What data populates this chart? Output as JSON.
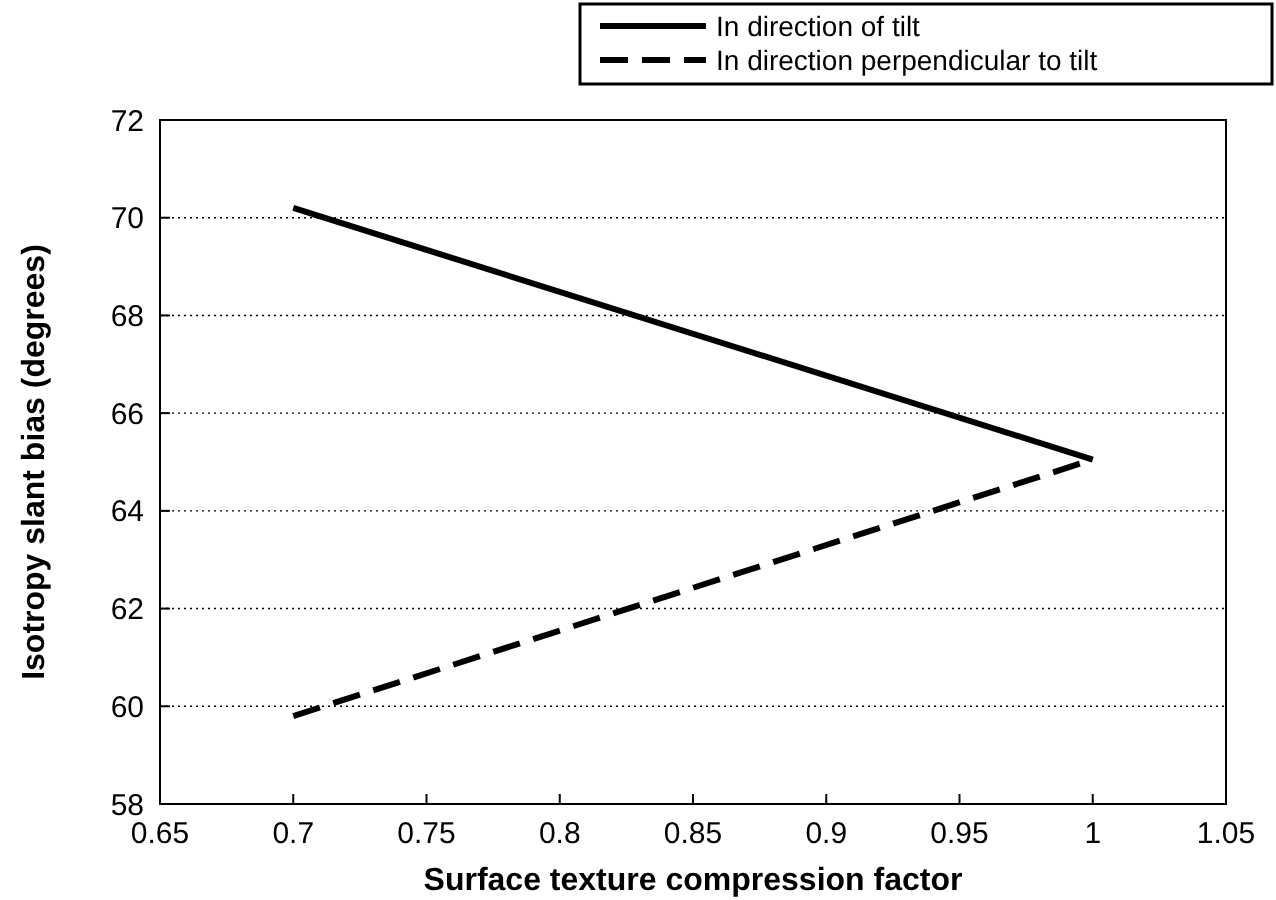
{
  "chart_data": {
    "type": "line",
    "xlabel": "Surface texture compression factor",
    "ylabel": "Isotropy slant bias (degrees)",
    "xlim": [
      0.65,
      1.05
    ],
    "xticks": [
      0.65,
      0.7,
      0.75,
      0.8,
      0.85,
      0.9,
      0.95,
      1,
      1.05
    ],
    "ylim": [
      58,
      72
    ],
    "yticks": [
      58,
      60,
      62,
      64,
      66,
      68,
      70,
      72
    ],
    "x": [
      0.7,
      1.0
    ],
    "grid": "y",
    "legend": "top right",
    "marker": "none",
    "series": [
      {
        "name": "In direction of tilt",
        "color": "#000000",
        "values": [
          70.2,
          65.05
        ],
        "line_style": "solid"
      },
      {
        "name": "In direction perpendicular to tilt",
        "color": "#000000",
        "values": [
          59.8,
          65.05
        ],
        "line_style": "dashed"
      }
    ]
  }
}
